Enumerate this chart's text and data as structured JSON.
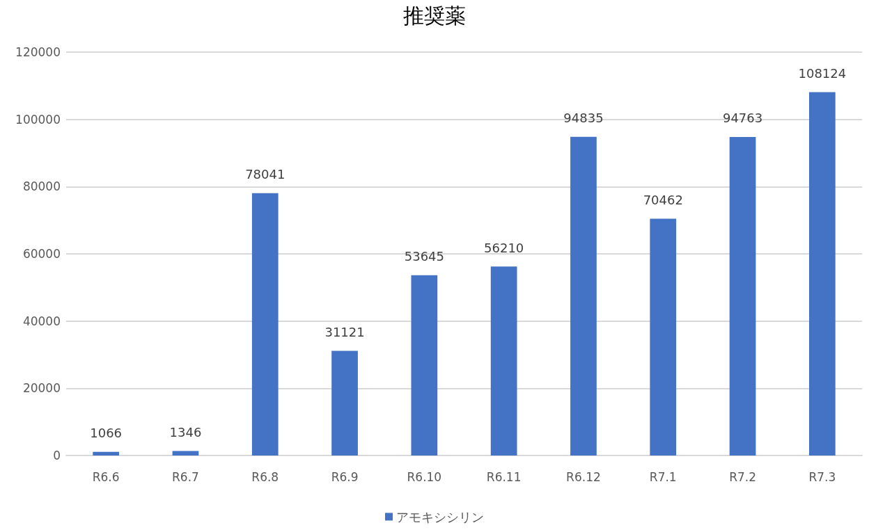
{
  "chart_data": {
    "type": "bar",
    "title": "推奨薬",
    "categories": [
      "R6.6",
      "R6.7",
      "R6.8",
      "R6.9",
      "R6.10",
      "R6.11",
      "R6.12",
      "R7.1",
      "R7.2",
      "R7.3"
    ],
    "series": [
      {
        "name": "アモキシシリン",
        "color": "#4472c4",
        "values": [
          1066,
          1346,
          78041,
          31121,
          53645,
          56210,
          94835,
          70462,
          94763,
          108124
        ]
      }
    ],
    "ylim": [
      0,
      120000
    ],
    "yticks": [
      0,
      20000,
      40000,
      60000,
      80000,
      100000,
      120000
    ],
    "grid": "y",
    "legend": "bottom",
    "data_labels": true
  }
}
